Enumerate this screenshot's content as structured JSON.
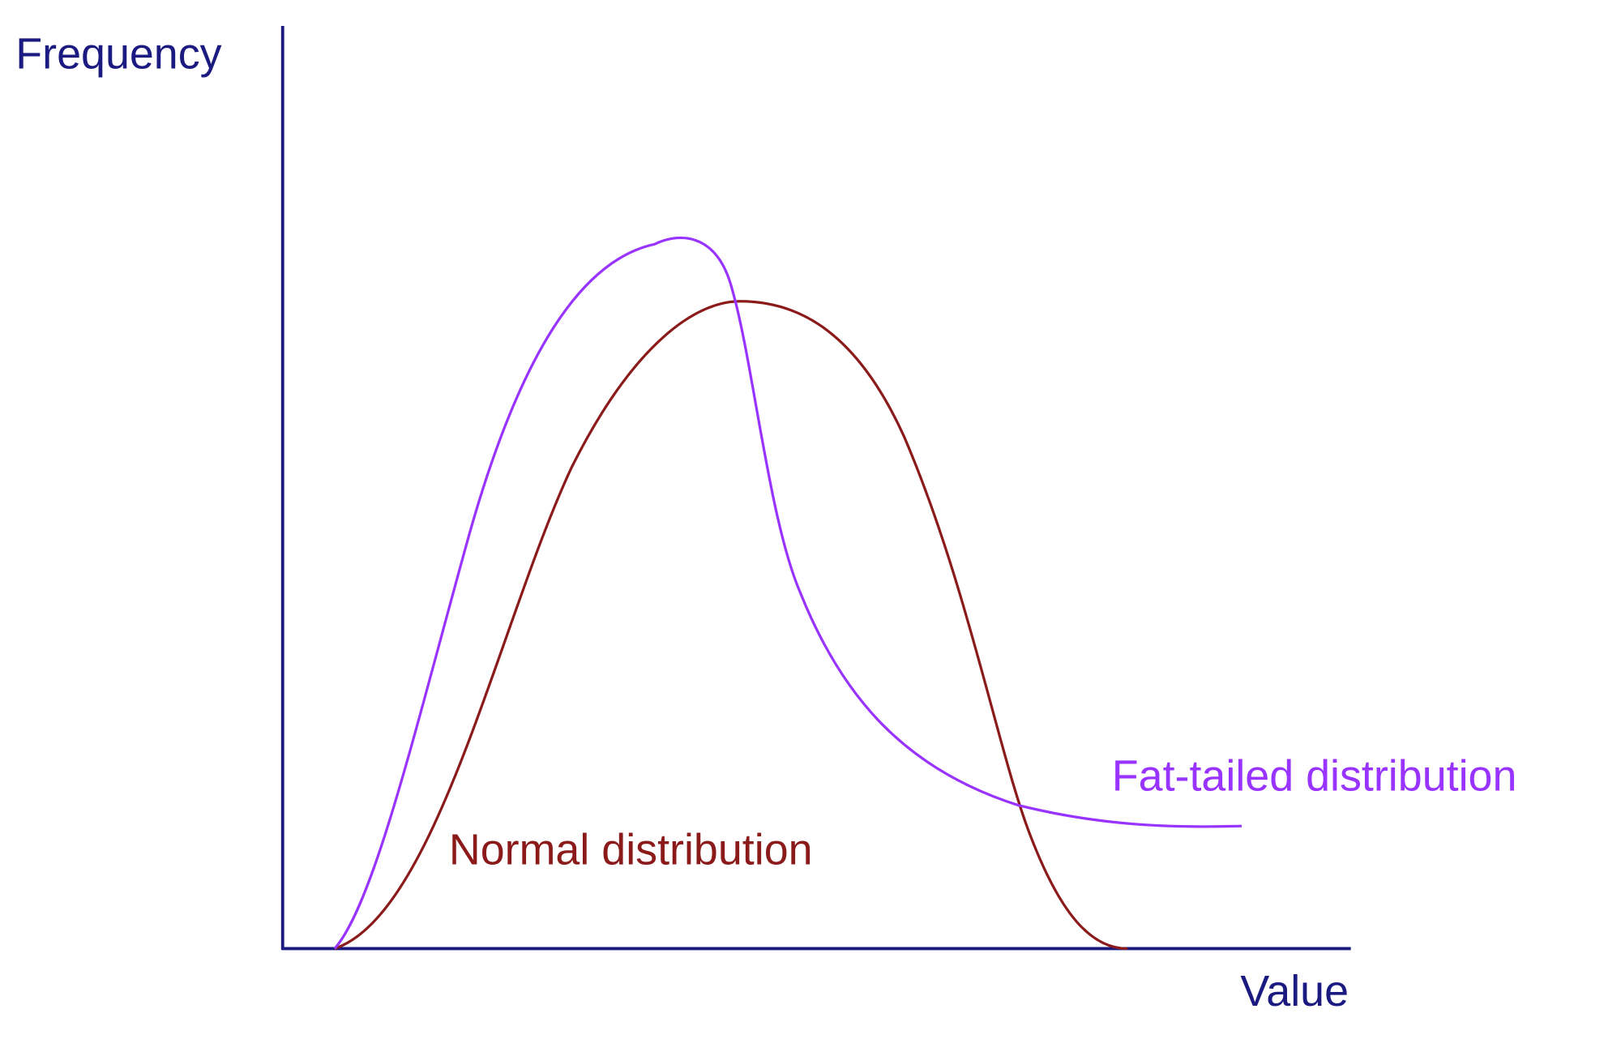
{
  "axes": {
    "y_label": "Frequency",
    "x_label": "Value"
  },
  "curves": [
    {
      "label": "Normal distribution"
    },
    {
      "label": "Fat-tailed distribution"
    }
  ]
}
